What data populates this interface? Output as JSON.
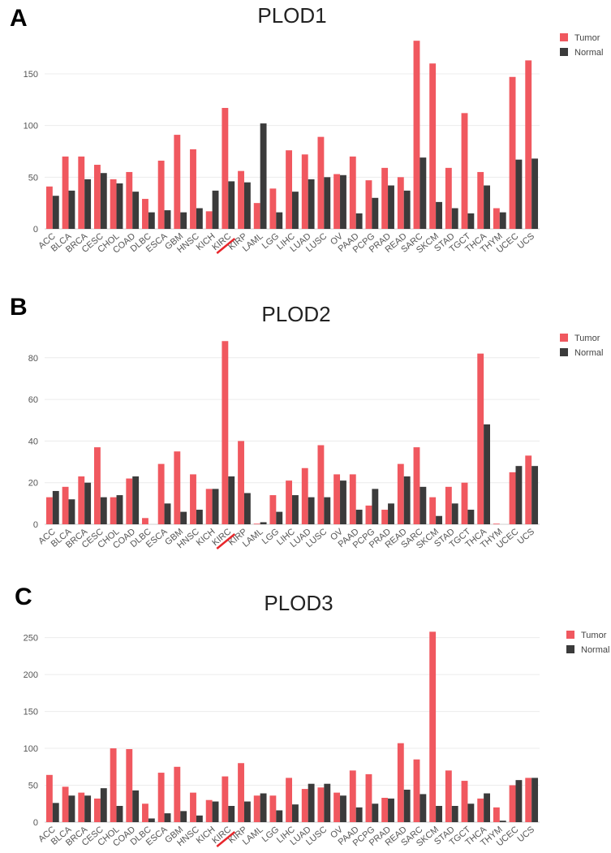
{
  "colors": {
    "tumor": "#f0585f",
    "normal": "#3b3b3b",
    "highlight": "#e8262b"
  },
  "highlight_category": "KIRC",
  "chart_data": [
    {
      "panel": "A",
      "type": "bar",
      "title": "PLOD1",
      "xlabel": "",
      "ylabel": "",
      "ylim": [
        0,
        190
      ],
      "yticks": [
        0,
        50,
        100,
        150
      ],
      "grid": true,
      "legend_position": "top-right",
      "categories": [
        "ACC",
        "BLCA",
        "BRCA",
        "CESC",
        "CHOL",
        "COAD",
        "DLBC",
        "ESCA",
        "GBM",
        "HNSC",
        "KICH",
        "KIRC",
        "KIRP",
        "LAML",
        "LGG",
        "LIHC",
        "LUAD",
        "LUSC",
        "OV",
        "PAAD",
        "PCPG",
        "PRAD",
        "READ",
        "SARC",
        "SKCM",
        "STAD",
        "TGCT",
        "THCA",
        "THYM",
        "UCEC",
        "UCS"
      ],
      "series": [
        {
          "name": "Tumor",
          "values": [
            41,
            70,
            70,
            62,
            48,
            55,
            29,
            66,
            91,
            77,
            17,
            117,
            56,
            25,
            39,
            76,
            72,
            89,
            53,
            70,
            47,
            59,
            50,
            182,
            160,
            59,
            112,
            55,
            20,
            147,
            163
          ]
        },
        {
          "name": "Normal",
          "values": [
            32,
            37,
            48,
            54,
            44,
            36,
            16,
            18,
            16,
            20,
            37,
            46,
            45,
            102,
            16,
            36,
            48,
            50,
            52,
            15,
            30,
            42,
            37,
            69,
            26,
            20,
            15,
            42,
            16,
            67,
            68
          ]
        }
      ]
    },
    {
      "panel": "B",
      "type": "bar",
      "title": "PLOD2",
      "xlabel": "",
      "ylabel": "",
      "ylim": [
        0,
        92
      ],
      "yticks": [
        0,
        20,
        40,
        60,
        80
      ],
      "grid": true,
      "legend_position": "top-right",
      "categories": [
        "ACC",
        "BLCA",
        "BRCA",
        "CESC",
        "CHOL",
        "COAD",
        "DLBC",
        "ESCA",
        "GBM",
        "HNSC",
        "KICH",
        "KIRC",
        "KIRP",
        "LAML",
        "LGG",
        "LIHC",
        "LUAD",
        "LUSC",
        "OV",
        "PAAD",
        "PCPG",
        "PRAD",
        "READ",
        "SARC",
        "SKCM",
        "STAD",
        "TGCT",
        "THCA",
        "THYM",
        "UCEC",
        "UCS"
      ],
      "series": [
        {
          "name": "Tumor",
          "values": [
            13,
            18,
            23,
            37,
            13,
            22,
            3,
            29,
            35,
            24,
            17,
            88,
            40,
            0.3,
            14,
            21,
            27,
            38,
            24,
            24,
            9,
            7,
            29,
            37,
            13,
            18,
            20,
            82,
            0.3,
            25,
            33
          ]
        },
        {
          "name": "Normal",
          "values": [
            16,
            12,
            20,
            13,
            14,
            23,
            0,
            10,
            6,
            7,
            17,
            23,
            15,
            1,
            6,
            14,
            13,
            13,
            21,
            7,
            17,
            10,
            23,
            18,
            4,
            10,
            7,
            48,
            0,
            28,
            28
          ]
        }
      ]
    },
    {
      "panel": "C",
      "type": "bar",
      "title": "PLOD3",
      "xlabel": "",
      "ylabel": "",
      "ylim": [
        0,
        265
      ],
      "yticks": [
        0,
        50,
        100,
        150,
        200,
        250
      ],
      "grid": true,
      "legend_position": "top-right",
      "categories": [
        "ACC",
        "BLCA",
        "BRCA",
        "CESC",
        "CHOL",
        "COAD",
        "DLBC",
        "ESCA",
        "GBM",
        "HNSC",
        "KICH",
        "KIRC",
        "KIRP",
        "LAML",
        "LGG",
        "LIHC",
        "LUAD",
        "LUSC",
        "OV",
        "PAAD",
        "PCPG",
        "PRAD",
        "READ",
        "SARC",
        "SKCM",
        "STAD",
        "TGCT",
        "THCA",
        "THYM",
        "UCEC",
        "UCS"
      ],
      "series": [
        {
          "name": "Tumor",
          "values": [
            64,
            48,
            40,
            32,
            100,
            99,
            25,
            67,
            75,
            40,
            30,
            62,
            80,
            36,
            36,
            60,
            45,
            47,
            40,
            70,
            65,
            33,
            107,
            85,
            258,
            70,
            56,
            32,
            20,
            50,
            60
          ]
        },
        {
          "name": "Normal",
          "values": [
            26,
            36,
            36,
            46,
            22,
            43,
            5,
            12,
            15,
            9,
            28,
            22,
            28,
            39,
            16,
            24,
            52,
            52,
            36,
            20,
            25,
            32,
            44,
            38,
            22,
            22,
            25,
            39,
            2,
            57,
            60
          ]
        }
      ]
    }
  ]
}
